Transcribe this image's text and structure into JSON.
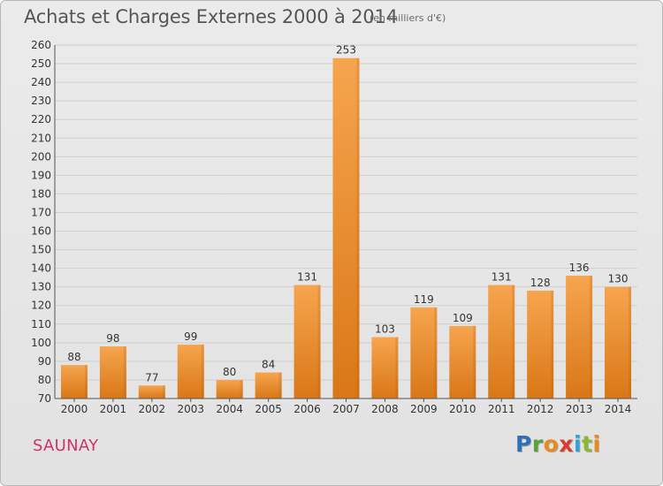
{
  "header": {
    "title": "Achats et Charges Externes 2000 à 2014",
    "unit": "(en milliers d'€)"
  },
  "footer": {
    "commune": "SAUNAY",
    "brand": "Proxiti",
    "brand_letters": [
      {
        "ch": "P",
        "color": "#2f6fb7"
      },
      {
        "ch": "r",
        "color": "#5aa238"
      },
      {
        "ch": "o",
        "color": "#e98a1c"
      },
      {
        "ch": "x",
        "color": "#d93b2f"
      },
      {
        "ch": "i",
        "color": "#2fa3d5"
      },
      {
        "ch": "t",
        "color": "#8ab834"
      },
      {
        "ch": "i",
        "color": "#e98a1c"
      }
    ]
  },
  "colors": {
    "bar_light": "#f6a54e",
    "bar_dark": "#d97717",
    "grid": "#cfcfcf",
    "axis_text": "#333333",
    "value_text": "#333333"
  },
  "chart_data": {
    "type": "bar",
    "title": "Achats et Charges Externes 2000 à 2014",
    "subtitle": "(en milliers d'€)",
    "categories": [
      "2000",
      "2001",
      "2002",
      "2003",
      "2004",
      "2005",
      "2006",
      "2007",
      "2008",
      "2009",
      "2010",
      "2011",
      "2012",
      "2013",
      "2014"
    ],
    "values": [
      88,
      98,
      77,
      99,
      80,
      84,
      131,
      253,
      103,
      119,
      109,
      131,
      128,
      136,
      130
    ],
    "ylim": [
      70,
      260
    ],
    "ytick_step": 10,
    "grid": true,
    "xlabel": "",
    "ylabel": ""
  }
}
